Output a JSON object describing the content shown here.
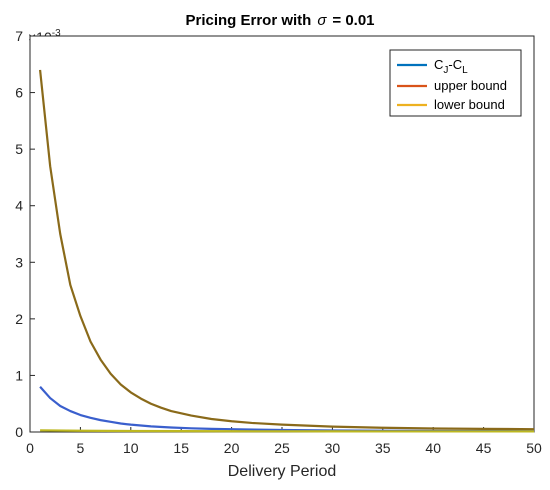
{
  "chart_data": {
    "type": "line",
    "title_prefix": "Pricing Error with",
    "title_symbol": "σ",
    "title_suffix": "= 0.01",
    "xlabel": "Delivery Period",
    "ylabel": "",
    "y_exponent_label": "×10",
    "y_exponent": "-3",
    "xlim": [
      0,
      50
    ],
    "ylim": [
      0,
      7
    ],
    "xticks": [
      "0",
      "5",
      "10",
      "15",
      "20",
      "25",
      "30",
      "35",
      "40",
      "45",
      "50"
    ],
    "yticks": [
      "0",
      "1",
      "2",
      "3",
      "4",
      "5",
      "6",
      "7"
    ],
    "grid": false,
    "legend_position": "top-right",
    "legend": [
      {
        "main": "C",
        "sub1": "J",
        "mid": "-C",
        "sub2": "L",
        "color": "#0072BD"
      },
      {
        "main": "upper bound",
        "color": "#D95319"
      },
      {
        "main": "lower bound",
        "color": "#EDB120"
      }
    ],
    "series": [
      {
        "key": "cj_cl",
        "color": "#3a5fcd",
        "x": [
          1,
          2,
          3,
          4,
          5,
          6,
          7,
          8,
          9,
          10,
          12,
          14,
          16,
          18,
          20,
          25,
          30,
          35,
          40,
          45,
          50
        ],
        "y": [
          0.8,
          0.6,
          0.46,
          0.37,
          0.3,
          0.25,
          0.21,
          0.18,
          0.15,
          0.13,
          0.1,
          0.08,
          0.065,
          0.055,
          0.048,
          0.035,
          0.027,
          0.022,
          0.018,
          0.016,
          0.014
        ]
      },
      {
        "key": "upper_bound",
        "color": "#8a6a1a",
        "x": [
          1,
          2,
          3,
          4,
          5,
          6,
          7,
          8,
          9,
          10,
          11,
          12,
          13,
          14,
          15,
          16,
          18,
          20,
          22,
          25,
          30,
          35,
          40,
          45,
          50
        ],
        "y": [
          6.4,
          4.7,
          3.5,
          2.6,
          2.05,
          1.6,
          1.28,
          1.03,
          0.84,
          0.7,
          0.59,
          0.5,
          0.43,
          0.37,
          0.33,
          0.29,
          0.23,
          0.19,
          0.16,
          0.13,
          0.095,
          0.075,
          0.062,
          0.055,
          0.05
        ]
      },
      {
        "key": "lower_bound",
        "color": "#bdb820",
        "x": [
          1,
          5,
          10,
          15,
          20,
          25,
          30,
          35,
          40,
          45,
          50
        ],
        "y": [
          0.03,
          0.022,
          0.018,
          0.015,
          0.013,
          0.012,
          0.011,
          0.01,
          0.01,
          0.01,
          0.01
        ]
      }
    ]
  }
}
